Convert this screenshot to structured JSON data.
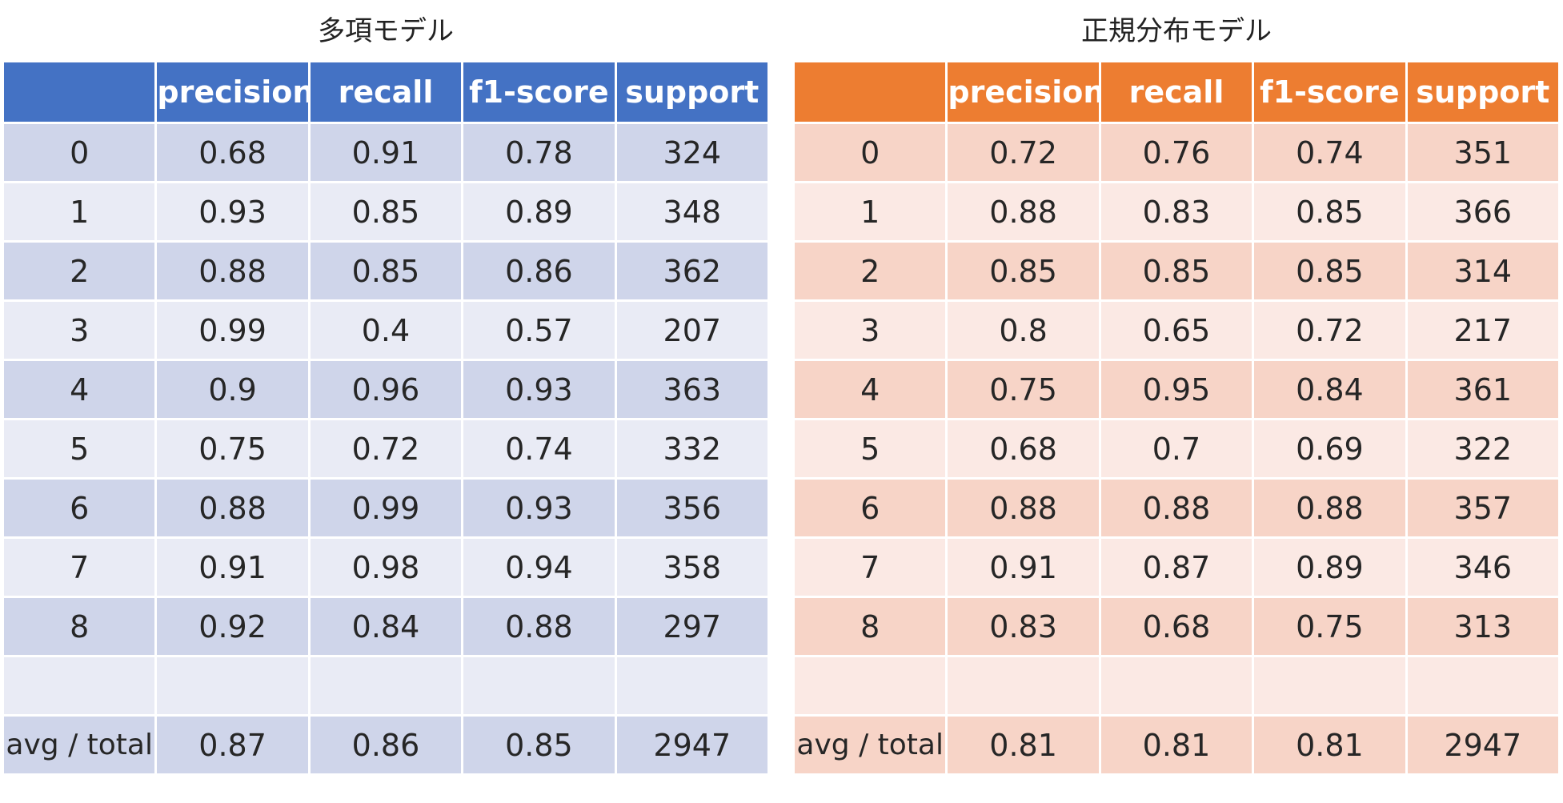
{
  "headers": [
    "",
    "precision",
    "recall",
    "f1-score",
    "support"
  ],
  "tables": [
    {
      "title": "多項モデル",
      "rows": [
        [
          "0",
          "0.68",
          "0.91",
          "0.78",
          "324"
        ],
        [
          "1",
          "0.93",
          "0.85",
          "0.89",
          "348"
        ],
        [
          "2",
          "0.88",
          "0.85",
          "0.86",
          "362"
        ],
        [
          "3",
          "0.99",
          "0.4",
          "0.57",
          "207"
        ],
        [
          "4",
          "0.9",
          "0.96",
          "0.93",
          "363"
        ],
        [
          "5",
          "0.75",
          "0.72",
          "0.74",
          "332"
        ],
        [
          "6",
          "0.88",
          "0.99",
          "0.93",
          "356"
        ],
        [
          "7",
          "0.91",
          "0.98",
          "0.94",
          "358"
        ],
        [
          "8",
          "0.92",
          "0.84",
          "0.88",
          "297"
        ],
        [
          "",
          "",
          "",
          "",
          ""
        ],
        [
          "avg / total",
          "0.87",
          "0.86",
          "0.85",
          "2947"
        ]
      ]
    },
    {
      "title": "正規分布モデル",
      "rows": [
        [
          "0",
          "0.72",
          "0.76",
          "0.74",
          "351"
        ],
        [
          "1",
          "0.88",
          "0.83",
          "0.85",
          "366"
        ],
        [
          "2",
          "0.85",
          "0.85",
          "0.85",
          "314"
        ],
        [
          "3",
          "0.8",
          "0.65",
          "0.72",
          "217"
        ],
        [
          "4",
          "0.75",
          "0.95",
          "0.84",
          "361"
        ],
        [
          "5",
          "0.68",
          "0.7",
          "0.69",
          "322"
        ],
        [
          "6",
          "0.88",
          "0.88",
          "0.88",
          "357"
        ],
        [
          "7",
          "0.91",
          "0.87",
          "0.89",
          "346"
        ],
        [
          "8",
          "0.83",
          "0.68",
          "0.75",
          "313"
        ],
        [
          "",
          "",
          "",
          "",
          ""
        ],
        [
          "avg / total",
          "0.81",
          "0.81",
          "0.81",
          "2947"
        ]
      ]
    }
  ],
  "colors": {
    "left_header": "#4472c4",
    "left_band_dark": "#cfd5ea",
    "left_band_light": "#e9ebf5",
    "right_header": "#ed7d31",
    "right_band_dark": "#f7d4c7",
    "right_band_light": "#fbe9e4"
  }
}
